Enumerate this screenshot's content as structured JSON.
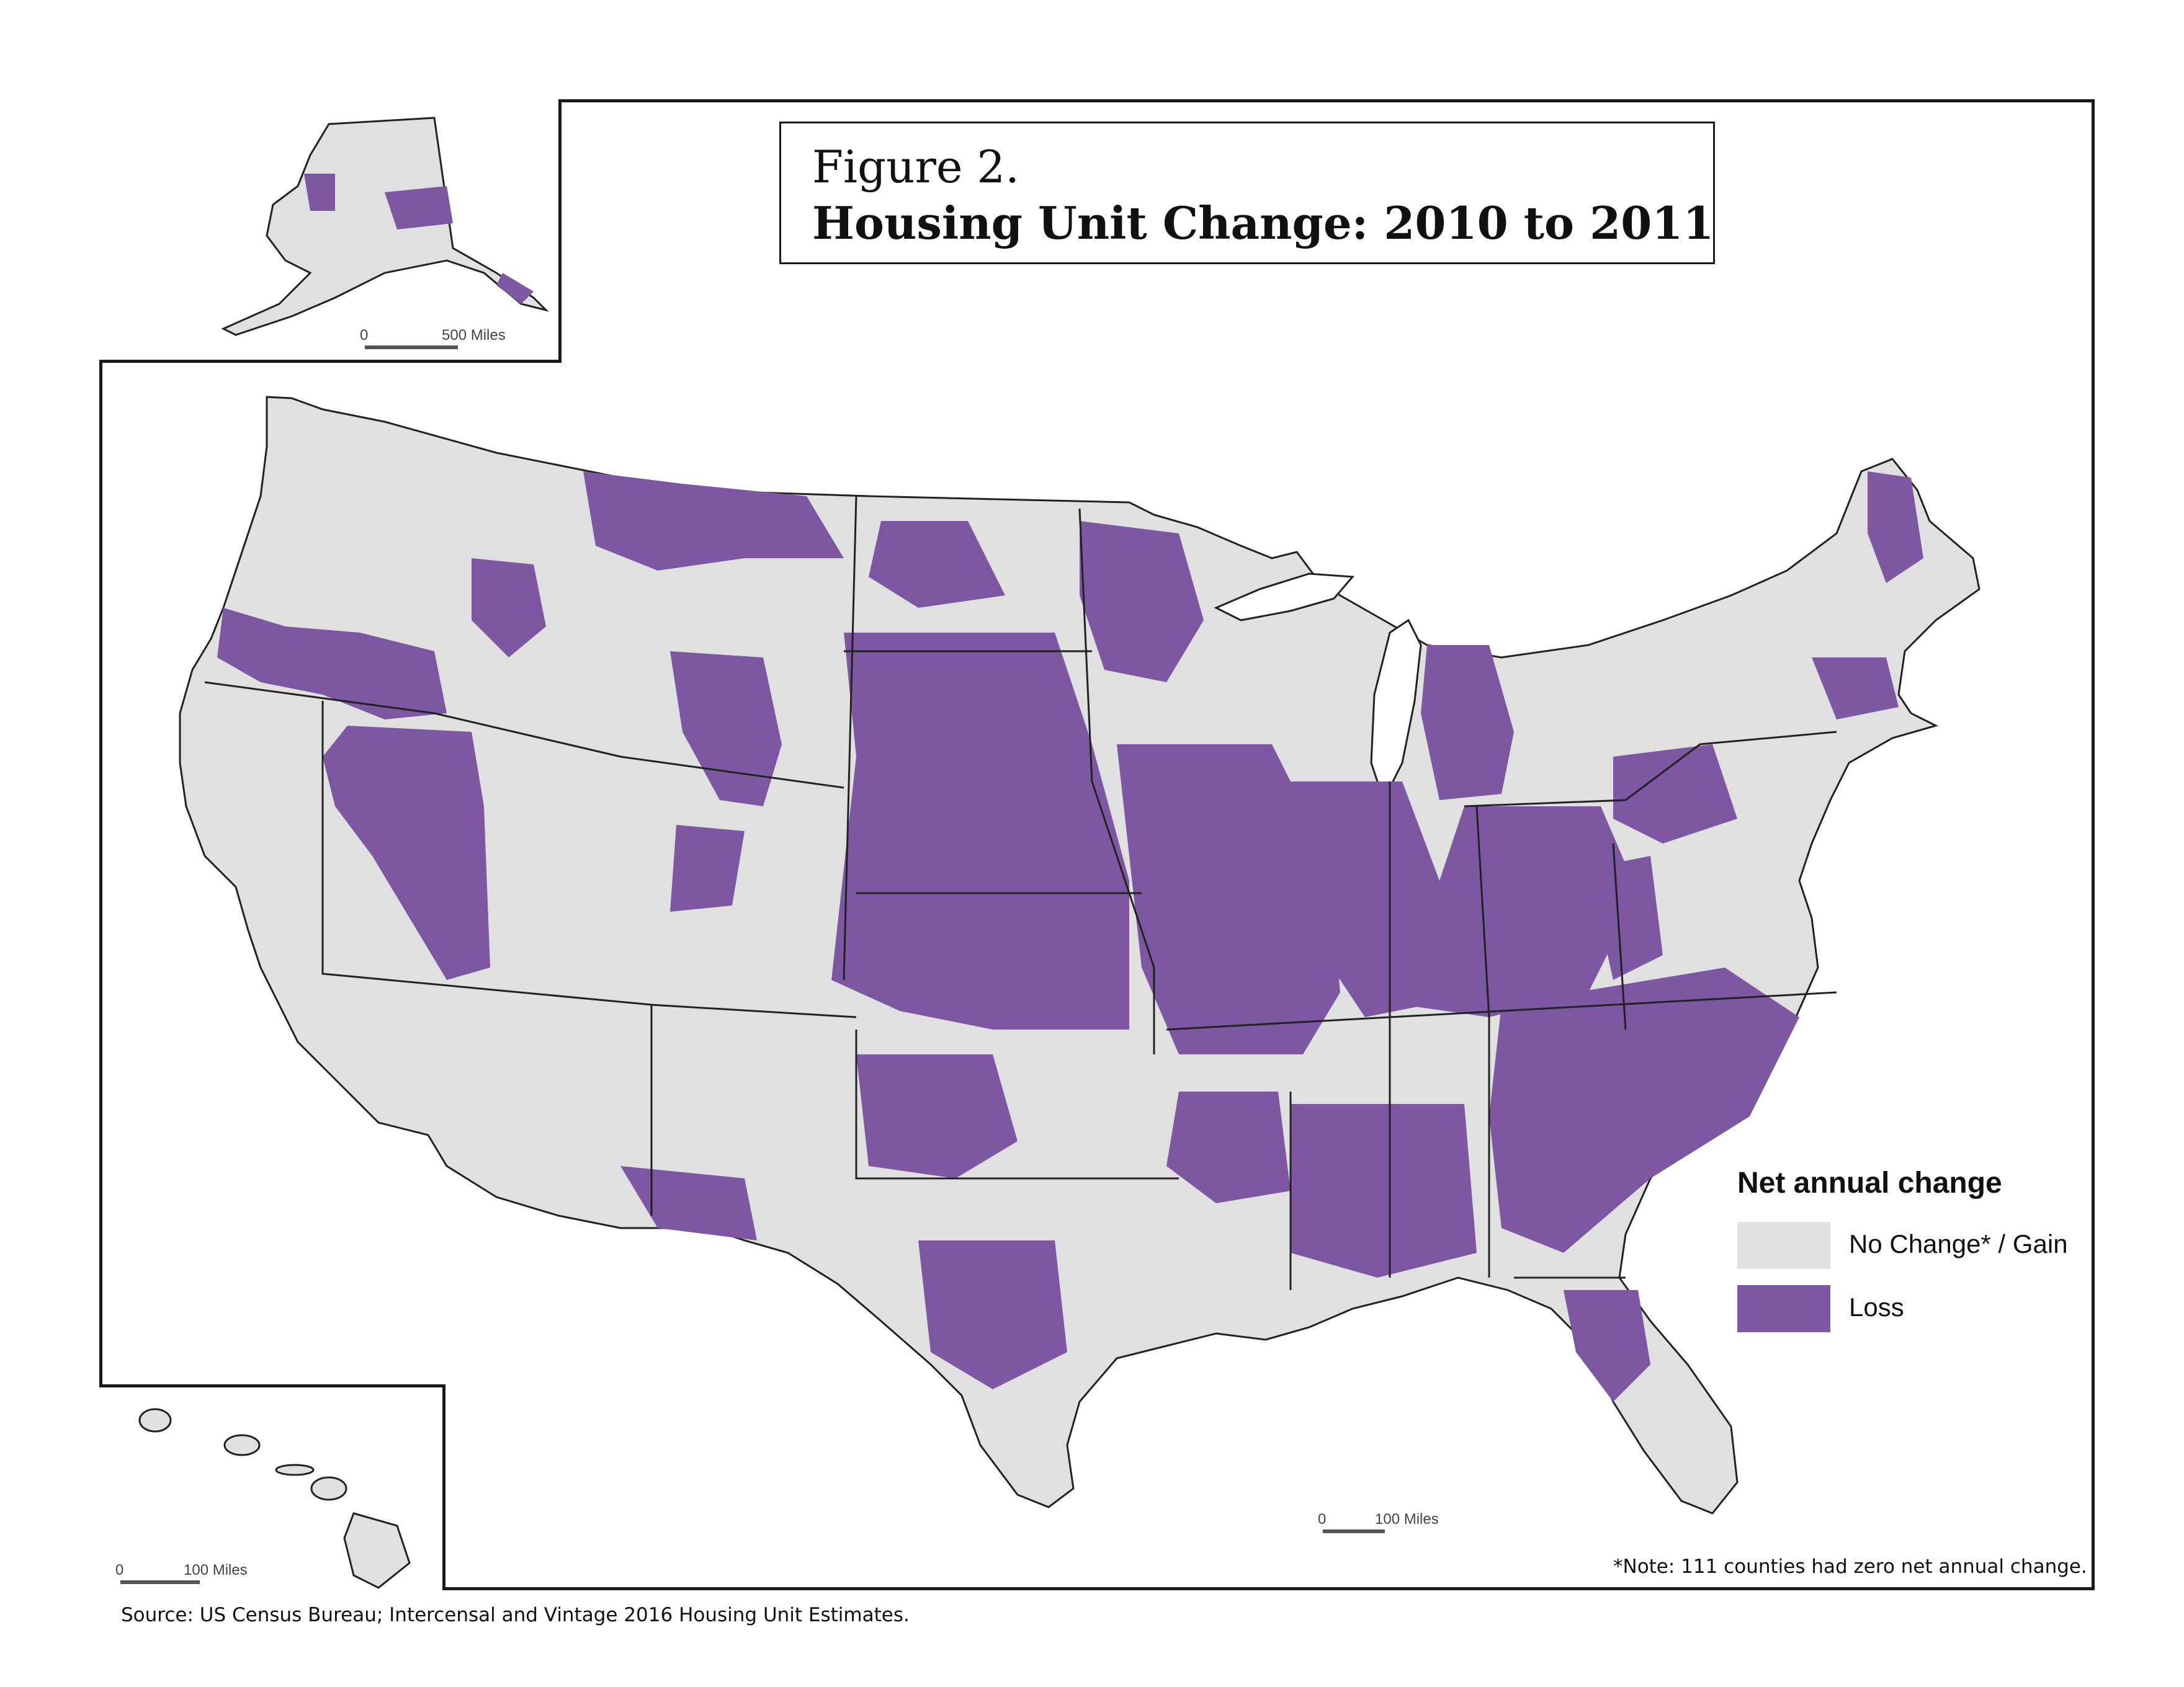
{
  "figure_label": "Figure 2.",
  "title": "Housing Unit Change: 2010 to 2011",
  "legend": {
    "title": "Net annual change",
    "items": [
      {
        "label": "No Change* / Gain",
        "color": "#e0e0e0"
      },
      {
        "label": "Loss",
        "color": "#7e57a2"
      }
    ]
  },
  "note": "*Note: 111 counties had zero net annual change.",
  "source": "Source: US Census Bureau; Intercensal and Vintage 2016 Housing Unit Estimates.",
  "scale_bars": {
    "alaska": {
      "zero": "0",
      "distance": "500 Miles"
    },
    "hawaii": {
      "zero": "0",
      "distance": "100 Miles"
    },
    "main": {
      "zero": "0",
      "distance": "100 Miles"
    }
  },
  "colors": {
    "gain": "#e0e0e0",
    "loss": "#7e57a2",
    "border": "#222222"
  }
}
